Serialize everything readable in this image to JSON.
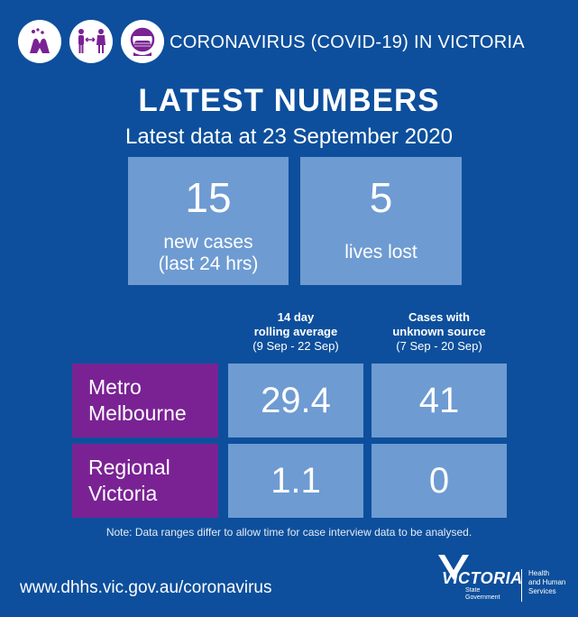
{
  "header": {
    "title": "CORONAVIRUS (COVID-19) IN VICTORIA",
    "icons": [
      "hand-washing-icon",
      "physical-distancing-icon",
      "face-mask-icon"
    ]
  },
  "main": {
    "title": "LATEST NUMBERS",
    "subtitle": "Latest data at 23 September 2020"
  },
  "stats": [
    {
      "value": "15",
      "label_line1": "new cases",
      "label_line2": "(last 24 hrs)"
    },
    {
      "value": "5",
      "label_line1": "lives lost"
    }
  ],
  "table": {
    "columns": [
      {
        "title_line1": "14 day",
        "title_line2": "rolling average",
        "range": "(9 Sep - 22 Sep)"
      },
      {
        "title_line1": "Cases with",
        "title_line2": "unknown source",
        "range": "(7 Sep - 20 Sep)"
      }
    ],
    "rows": [
      {
        "label_line1": "Metro",
        "label_line2": "Melbourne",
        "values": [
          "29.4",
          "41"
        ]
      },
      {
        "label_line1": "Regional",
        "label_line2": "Victoria",
        "values": [
          "1.1",
          "0"
        ]
      }
    ]
  },
  "note": "Note: Data ranges differ to allow time for case interview data to be analysed.",
  "footer": {
    "url": "www.dhhs.vic.gov.au/coronavirus",
    "logo_name": "VICTORIA",
    "logo_state_line1": "State",
    "logo_state_line2": "Government",
    "logo_dept": "Health\nand Human\nServices"
  },
  "colors": {
    "background": "#0d4f9c",
    "box": "#6e9bd2",
    "row_label": "#7a2294",
    "icon_purple": "#7a2294"
  }
}
